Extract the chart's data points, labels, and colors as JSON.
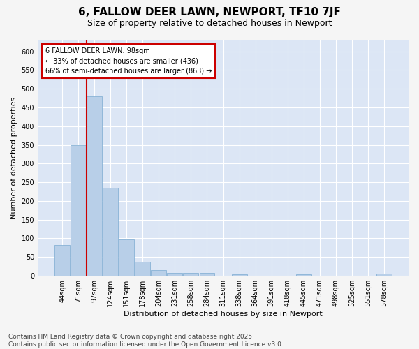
{
  "title": "6, FALLOW DEER LAWN, NEWPORT, TF10 7JF",
  "subtitle": "Size of property relative to detached houses in Newport",
  "xlabel": "Distribution of detached houses by size in Newport",
  "ylabel": "Number of detached properties",
  "categories": [
    "44sqm",
    "71sqm",
    "97sqm",
    "124sqm",
    "151sqm",
    "178sqm",
    "204sqm",
    "231sqm",
    "258sqm",
    "284sqm",
    "311sqm",
    "338sqm",
    "364sqm",
    "391sqm",
    "418sqm",
    "445sqm",
    "471sqm",
    "498sqm",
    "525sqm",
    "551sqm",
    "578sqm"
  ],
  "values": [
    83,
    350,
    480,
    235,
    97,
    37,
    16,
    8,
    8,
    7,
    0,
    3,
    0,
    0,
    0,
    4,
    0,
    0,
    0,
    0,
    5
  ],
  "bar_color": "#b8cfe8",
  "bar_edgecolor": "#7aaad0",
  "vline_color": "#cc0000",
  "vline_x_index": 2,
  "annotation_text": "6 FALLOW DEER LAWN: 98sqm\n← 33% of detached houses are smaller (436)\n66% of semi-detached houses are larger (863) →",
  "annotation_box_facecolor": "#ffffff",
  "annotation_box_edgecolor": "#cc0000",
  "ylim": [
    0,
    630
  ],
  "yticks": [
    0,
    50,
    100,
    150,
    200,
    250,
    300,
    350,
    400,
    450,
    500,
    550,
    600
  ],
  "plot_bg_color": "#dce6f5",
  "grid_color": "#ffffff",
  "fig_bg_color": "#f5f5f5",
  "title_fontsize": 11,
  "subtitle_fontsize": 9,
  "axis_label_fontsize": 8,
  "tick_fontsize": 7,
  "annotation_fontsize": 7,
  "footer_fontsize": 6.5,
  "footer_text": "Contains HM Land Registry data © Crown copyright and database right 2025.\nContains public sector information licensed under the Open Government Licence v3.0."
}
